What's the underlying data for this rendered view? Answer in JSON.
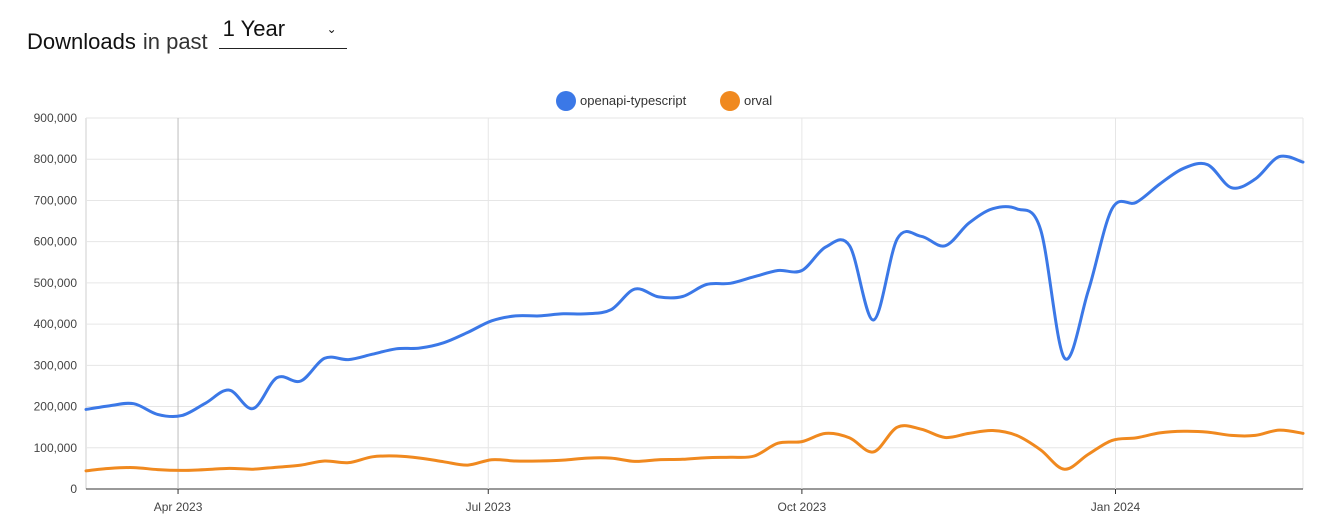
{
  "header": {
    "title_strong": "Downloads",
    "title_light": "in past",
    "period_selected": "1 Year",
    "period_chevron_icon": "chevron-down-icon"
  },
  "colors": {
    "openapi_typescript": "#3b78e7",
    "orval": "#f0891f",
    "grid": "#e6e6e6",
    "axis_text": "#444444"
  },
  "chart_data": {
    "type": "line",
    "grid": true,
    "legend_placement": "top-center",
    "ylim": [
      0,
      900000
    ],
    "y_ticks": [
      0,
      100000,
      200000,
      300000,
      400000,
      500000,
      600000,
      700000,
      800000,
      900000
    ],
    "y_tick_labels": [
      "0",
      "100,000",
      "200,000",
      "300,000",
      "400,000",
      "500,000",
      "600,000",
      "700,000",
      "800,000",
      "900,000"
    ],
    "x_range": [
      "2023-03-05",
      "2024-02-25"
    ],
    "x_ticks": [
      "2023-04-01",
      "2023-07-01",
      "2023-10-01",
      "2024-01-01"
    ],
    "x_tick_labels": [
      "Apr 2023",
      "Jul 2023",
      "Oct 2023",
      "Jan 2024"
    ],
    "x": [
      "2023-03-05",
      "2023-03-12",
      "2023-03-19",
      "2023-03-26",
      "2023-04-02",
      "2023-04-09",
      "2023-04-16",
      "2023-04-23",
      "2023-04-30",
      "2023-05-07",
      "2023-05-14",
      "2023-05-21",
      "2023-05-28",
      "2023-06-04",
      "2023-06-11",
      "2023-06-18",
      "2023-06-25",
      "2023-07-02",
      "2023-07-09",
      "2023-07-16",
      "2023-07-23",
      "2023-07-30",
      "2023-08-06",
      "2023-08-13",
      "2023-08-20",
      "2023-08-27",
      "2023-09-03",
      "2023-09-10",
      "2023-09-17",
      "2023-09-24",
      "2023-10-01",
      "2023-10-08",
      "2023-10-15",
      "2023-10-22",
      "2023-10-29",
      "2023-11-05",
      "2023-11-12",
      "2023-11-19",
      "2023-11-26",
      "2023-12-03",
      "2023-12-10",
      "2023-12-17",
      "2023-12-24",
      "2023-12-31",
      "2024-01-07",
      "2024-01-14",
      "2024-01-21",
      "2024-01-28",
      "2024-02-04",
      "2024-02-11",
      "2024-02-18",
      "2024-02-25"
    ],
    "series": [
      {
        "name": "openapi-typescript",
        "values": [
          193000,
          202000,
          207000,
          181000,
          178000,
          208000,
          240000,
          195000,
          270000,
          262000,
          317000,
          314000,
          327000,
          340000,
          342000,
          355000,
          380000,
          408000,
          420000,
          420000,
          425000,
          425000,
          435000,
          485000,
          466000,
          467000,
          496000,
          499000,
          515000,
          530000,
          530000,
          587000,
          590000,
          410000,
          607000,
          613000,
          590000,
          645000,
          680000,
          680000,
          630000,
          318000,
          480000,
          680000,
          695000,
          740000,
          778000,
          787000,
          731000,
          752000,
          806000,
          793000
        ]
      },
      {
        "name": "orval",
        "values": [
          44000,
          50000,
          52000,
          47000,
          45000,
          47000,
          50000,
          48000,
          53000,
          58000,
          68000,
          64000,
          78000,
          80000,
          75000,
          66000,
          58000,
          71000,
          68000,
          68000,
          70000,
          75000,
          75000,
          67000,
          71000,
          72000,
          76000,
          77000,
          80000,
          111000,
          115000,
          135000,
          124000,
          90000,
          150000,
          145000,
          125000,
          135000,
          142000,
          130000,
          95000,
          48000,
          84000,
          118000,
          124000,
          136000,
          140000,
          138000,
          130000,
          130000,
          143000,
          135000
        ]
      }
    ]
  }
}
